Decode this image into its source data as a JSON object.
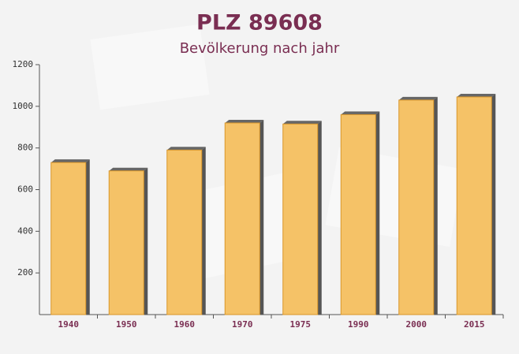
{
  "chart_data": {
    "type": "bar",
    "title": "PLZ 89608",
    "subtitle": "Bevölkerung nach jahr",
    "categories": [
      "1940",
      "1950",
      "1960",
      "1970",
      "1975",
      "1990",
      "2000",
      "2015"
    ],
    "values": [
      730,
      690,
      790,
      920,
      915,
      960,
      1030,
      1045
    ],
    "color": "#f5b84e",
    "ylim": [
      0,
      1200
    ],
    "yticks": [
      200,
      400,
      600,
      800,
      1000,
      1200
    ]
  }
}
